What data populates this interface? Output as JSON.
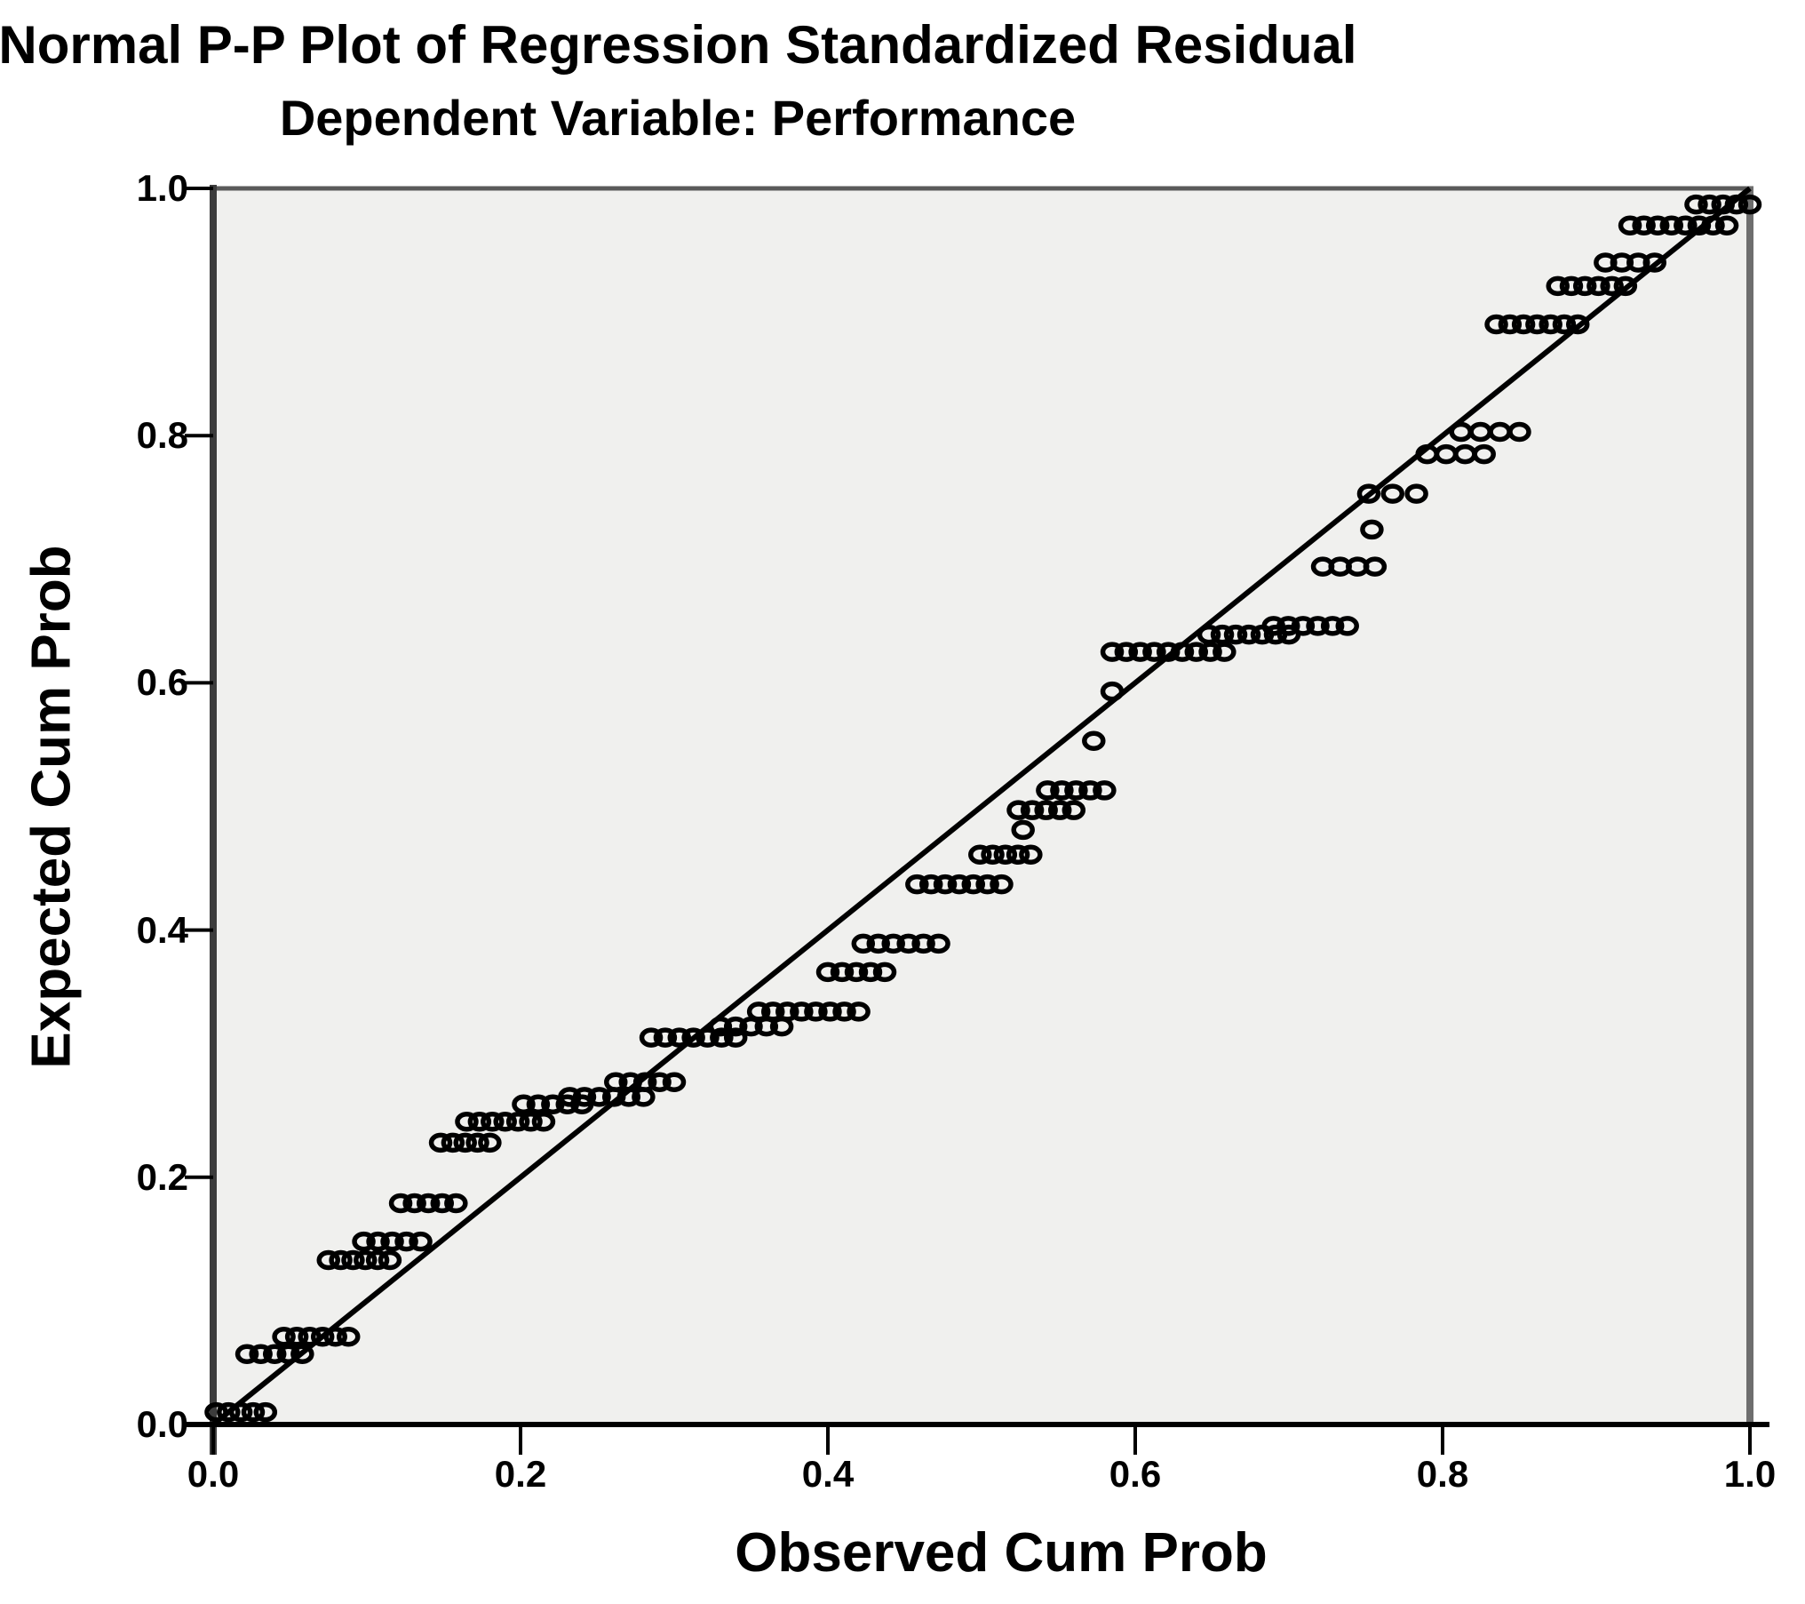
{
  "chart_data": {
    "type": "scatter",
    "title": "Normal P-P Plot of Regression Standardized Residual",
    "subtitle": "Dependent Variable: Performance",
    "xlabel": "Observed Cum Prob",
    "ylabel": "Expected Cum Prob",
    "xlim": [
      0.0,
      1.0
    ],
    "ylim": [
      0.0,
      1.0
    ],
    "xticks": [
      {
        "label": "0.0",
        "value": 0.0
      },
      {
        "label": "0.2",
        "value": 0.2
      },
      {
        "label": "0.4",
        "value": 0.4
      },
      {
        "label": "0.6",
        "value": 0.6
      },
      {
        "label": "0.8",
        "value": 0.8
      },
      {
        "label": "1.0",
        "value": 1.0
      }
    ],
    "yticks": [
      {
        "label": "0.0",
        "value": 0.0
      },
      {
        "label": "0.2",
        "value": 0.2
      },
      {
        "label": "0.4",
        "value": 0.4
      },
      {
        "label": "0.6",
        "value": 0.6
      },
      {
        "label": "0.8",
        "value": 0.8
      },
      {
        "label": "1.0",
        "value": 1.0
      }
    ],
    "grid": false,
    "legend": "none",
    "plot_bg_color": "#F0F0EE",
    "marker": "open-circle",
    "marker_color": "#000000",
    "frame_colors": {
      "left": "#3C3C3C",
      "top": "#5A5A5A",
      "right": "#6E6E6E",
      "bottom": "#000000"
    },
    "reference_line": {
      "x1": 0.0,
      "y1": 0.0,
      "x2": 1.0,
      "y2": 1.0,
      "color": "#000000"
    },
    "series": [
      {
        "name": "Regression Standardized Residual",
        "runs": [
          {
            "expected": 0.01,
            "observed_from": 0.002,
            "observed_to": 0.034,
            "n": 5
          },
          {
            "expected": 0.057,
            "observed_from": 0.022,
            "observed_to": 0.058,
            "n": 5
          },
          {
            "expected": 0.071,
            "observed_from": 0.046,
            "observed_to": 0.088,
            "n": 6
          },
          {
            "expected": 0.133,
            "observed_from": 0.075,
            "observed_to": 0.115,
            "n": 6
          },
          {
            "expected": 0.148,
            "observed_from": 0.098,
            "observed_to": 0.135,
            "n": 5
          },
          {
            "expected": 0.179,
            "observed_from": 0.122,
            "observed_to": 0.158,
            "n": 5
          },
          {
            "expected": 0.228,
            "observed_from": 0.148,
            "observed_to": 0.18,
            "n": 5
          },
          {
            "expected": 0.245,
            "observed_from": 0.165,
            "observed_to": 0.215,
            "n": 7
          },
          {
            "expected": 0.259,
            "observed_from": 0.202,
            "observed_to": 0.24,
            "n": 5
          },
          {
            "expected": 0.265,
            "observed_from": 0.232,
            "observed_to": 0.28,
            "n": 6
          },
          {
            "expected": 0.277,
            "observed_from": 0.262,
            "observed_to": 0.3,
            "n": 5
          },
          {
            "expected": 0.313,
            "observed_from": 0.285,
            "observed_to": 0.34,
            "n": 7
          },
          {
            "expected": 0.322,
            "observed_from": 0.33,
            "observed_to": 0.37,
            "n": 5
          },
          {
            "expected": 0.334,
            "observed_from": 0.355,
            "observed_to": 0.42,
            "n": 8
          },
          {
            "expected": 0.366,
            "observed_from": 0.4,
            "observed_to": 0.437,
            "n": 5
          },
          {
            "expected": 0.389,
            "observed_from": 0.423,
            "observed_to": 0.472,
            "n": 6
          },
          {
            "expected": 0.437,
            "observed_from": 0.458,
            "observed_to": 0.513,
            "n": 7
          },
          {
            "expected": 0.461,
            "observed_from": 0.499,
            "observed_to": 0.532,
            "n": 5
          },
          {
            "expected": 0.481,
            "observed_from": 0.527,
            "observed_to": 0.527,
            "n": 1
          },
          {
            "expected": 0.497,
            "observed_from": 0.524,
            "observed_to": 0.56,
            "n": 5
          },
          {
            "expected": 0.513,
            "observed_from": 0.543,
            "observed_to": 0.58,
            "n": 5
          },
          {
            "expected": 0.553,
            "observed_from": 0.573,
            "observed_to": 0.573,
            "n": 1
          },
          {
            "expected": 0.593,
            "observed_from": 0.585,
            "observed_to": 0.585,
            "n": 1
          },
          {
            "expected": 0.625,
            "observed_from": 0.585,
            "observed_to": 0.658,
            "n": 9
          },
          {
            "expected": 0.639,
            "observed_from": 0.648,
            "observed_to": 0.7,
            "n": 7
          },
          {
            "expected": 0.646,
            "observed_from": 0.69,
            "observed_to": 0.738,
            "n": 6
          },
          {
            "expected": 0.694,
            "observed_from": 0.722,
            "observed_to": 0.756,
            "n": 4
          },
          {
            "expected": 0.724,
            "observed_from": 0.754,
            "observed_to": 0.754,
            "n": 1
          },
          {
            "expected": 0.753,
            "observed_from": 0.752,
            "observed_to": 0.783,
            "n": 3
          },
          {
            "expected": 0.785,
            "observed_from": 0.79,
            "observed_to": 0.827,
            "n": 4
          },
          {
            "expected": 0.803,
            "observed_from": 0.812,
            "observed_to": 0.85,
            "n": 4
          },
          {
            "expected": 0.89,
            "observed_from": 0.835,
            "observed_to": 0.888,
            "n": 7
          },
          {
            "expected": 0.921,
            "observed_from": 0.875,
            "observed_to": 0.919,
            "n": 6
          },
          {
            "expected": 0.94,
            "observed_from": 0.906,
            "observed_to": 0.938,
            "n": 4
          },
          {
            "expected": 0.97,
            "observed_from": 0.922,
            "observed_to": 0.985,
            "n": 8
          },
          {
            "expected": 0.987,
            "observed_from": 0.965,
            "observed_to": 1.0,
            "n": 5
          }
        ]
      }
    ]
  }
}
